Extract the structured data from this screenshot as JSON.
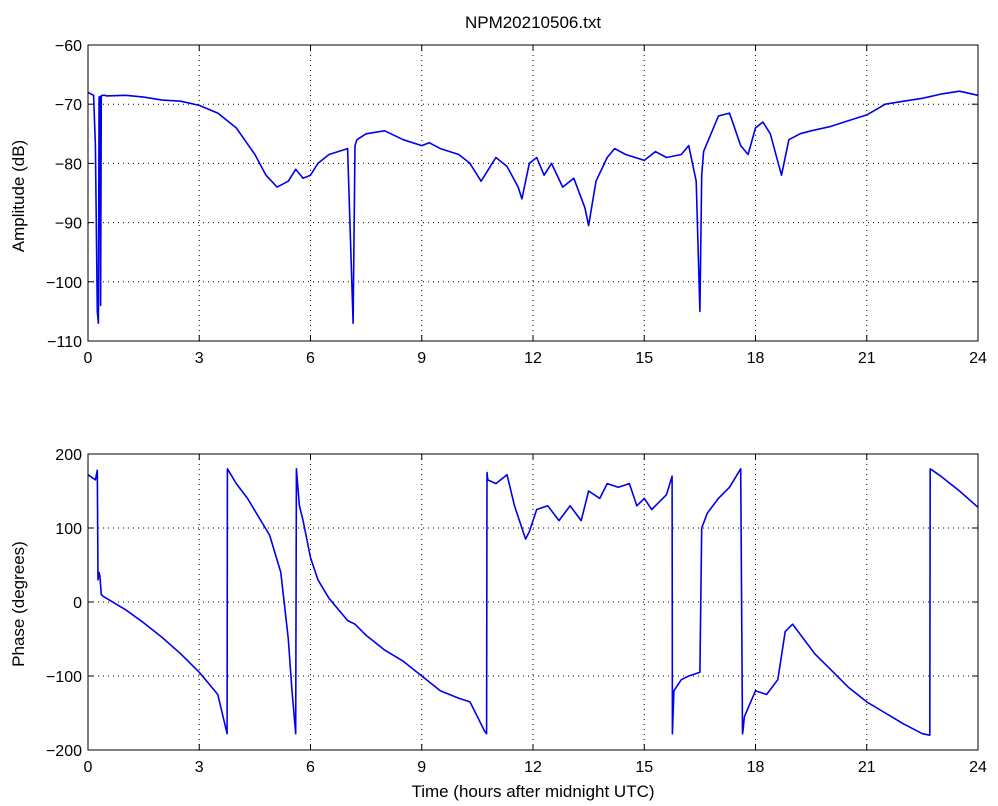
{
  "chart_data": [
    {
      "type": "line",
      "title": "NPM20210506.txt",
      "xlabel": "",
      "ylabel": "Amplitude (dB)",
      "xlim": [
        0,
        24
      ],
      "ylim": [
        -110,
        -60
      ],
      "xticks": [
        0,
        3,
        6,
        9,
        12,
        15,
        18,
        21,
        24
      ],
      "yticks": [
        -110,
        -100,
        -90,
        -80,
        -70,
        -60
      ],
      "grid": true,
      "color": "#0000ee",
      "x": [
        0,
        0.15,
        0.2,
        0.25,
        0.28,
        0.3,
        0.32,
        0.34,
        0.36,
        0.4,
        0.45,
        0.5,
        1,
        1.5,
        2,
        2.5,
        3,
        3.5,
        4,
        4.5,
        4.8,
        5.1,
        5.4,
        5.6,
        5.8,
        6.0,
        6.2,
        6.5,
        7,
        7.15,
        7.2,
        7.25,
        7.5,
        8,
        8.5,
        9,
        9.2,
        9.5,
        10,
        10.3,
        10.6,
        10.8,
        11,
        11.3,
        11.6,
        11.7,
        11.9,
        12.1,
        12.3,
        12.5,
        12.8,
        13.1,
        13.4,
        13.5,
        13.7,
        14,
        14.2,
        14.5,
        15,
        15.3,
        15.6,
        16,
        16.2,
        16.4,
        16.5,
        16.55,
        16.6,
        16.8,
        17,
        17.3,
        17.6,
        17.8,
        18,
        18.2,
        18.4,
        18.7,
        18.9,
        19.2,
        19.5,
        20,
        20.5,
        21,
        21.5,
        22,
        22.5,
        23,
        23.5,
        24
      ],
      "y": [
        -68,
        -68.5,
        -77,
        -105,
        -107,
        -68.8,
        -68.7,
        -104,
        -68.6,
        -68.5,
        -68.5,
        -68.6,
        -68.5,
        -68.8,
        -69.3,
        -69.5,
        -70.2,
        -71.5,
        -74,
        -78.5,
        -82,
        -84,
        -83,
        -81,
        -82.5,
        -82,
        -80,
        -78.5,
        -77.5,
        -107,
        -77,
        -76,
        -75,
        -74.5,
        -76,
        -77,
        -76.5,
        -77.5,
        -78.5,
        -80,
        -83,
        -81,
        -79,
        -80.5,
        -84,
        -86,
        -80,
        -79,
        -82,
        -80,
        -84,
        -82.5,
        -87.5,
        -90.5,
        -83,
        -79,
        -77.5,
        -78.5,
        -79.5,
        -78,
        -79,
        -78.5,
        -77,
        -83,
        -105,
        -82,
        -78,
        -75,
        -72,
        -71.5,
        -77,
        -78.5,
        -74,
        -73,
        -75,
        -82,
        -76,
        -75,
        -74.5,
        -73.8,
        -72.8,
        -71.8,
        -70,
        -69.5,
        -69,
        -68.3,
        -67.8,
        -68.5
      ],
      "series": [
        {
          "values_ref": "y"
        }
      ]
    },
    {
      "type": "line",
      "title": "",
      "xlabel": "Time (hours after midnight UTC)",
      "ylabel": "Phase (degrees)",
      "xlim": [
        0,
        24
      ],
      "ylim": [
        -200,
        200
      ],
      "xticks": [
        0,
        3,
        6,
        9,
        12,
        15,
        18,
        21,
        24
      ],
      "yticks": [
        -200,
        -100,
        0,
        100,
        200
      ],
      "grid": true,
      "color": "#0000ee",
      "x": [
        0,
        0.2,
        0.25,
        0.27,
        0.3,
        0.32,
        0.36,
        0.4,
        0.5,
        1,
        1.5,
        2,
        2.5,
        3,
        3.5,
        3.75,
        3.76,
        4,
        4.3,
        4.6,
        4.9,
        5.2,
        5.4,
        5.5,
        5.6,
        5.62,
        5.7,
        5.8,
        6,
        6.2,
        6.5,
        7,
        7.2,
        7.5,
        8,
        8.5,
        9,
        9.5,
        10,
        10.3,
        10.5,
        10.7,
        10.75,
        10.76,
        10.78,
        11,
        11.3,
        11.5,
        11.7,
        11.8,
        11.9,
        12.1,
        12.4,
        12.7,
        13,
        13.3,
        13.5,
        13.8,
        14,
        14.3,
        14.6,
        14.8,
        15,
        15.2,
        15.4,
        15.6,
        15.75,
        15.76,
        15.8,
        16,
        16.2,
        16.5,
        16.55,
        16.7,
        17,
        17.3,
        17.6,
        17.65,
        17.66,
        17.7,
        18,
        18.3,
        18.6,
        18.8,
        19,
        19.3,
        19.6,
        20,
        20.5,
        21,
        21.5,
        22,
        22.5,
        22.7,
        22.71,
        23,
        23.5,
        24
      ],
      "y": [
        172,
        165,
        178,
        30,
        40,
        35,
        10,
        8,
        5,
        -10,
        -28,
        -48,
        -70,
        -95,
        -125,
        -178,
        180,
        160,
        140,
        115,
        90,
        40,
        -50,
        -120,
        -178,
        180,
        130,
        110,
        60,
        30,
        5,
        -25,
        -30,
        -45,
        -65,
        -80,
        -100,
        -120,
        -130,
        -135,
        -155,
        -175,
        -178,
        175,
        165,
        160,
        172,
        130,
        100,
        85,
        95,
        125,
        130,
        110,
        130,
        110,
        150,
        140,
        160,
        155,
        160,
        130,
        140,
        125,
        135,
        145,
        170,
        -178,
        -120,
        -105,
        -100,
        -95,
        100,
        120,
        140,
        155,
        180,
        -178,
        -175,
        -155,
        -120,
        -125,
        -105,
        -40,
        -30,
        -50,
        -70,
        -90,
        -115,
        -135,
        -150,
        -165,
        -178,
        -180,
        180,
        170,
        150,
        128
      ],
      "series": [
        {
          "values_ref": "y"
        }
      ]
    }
  ]
}
